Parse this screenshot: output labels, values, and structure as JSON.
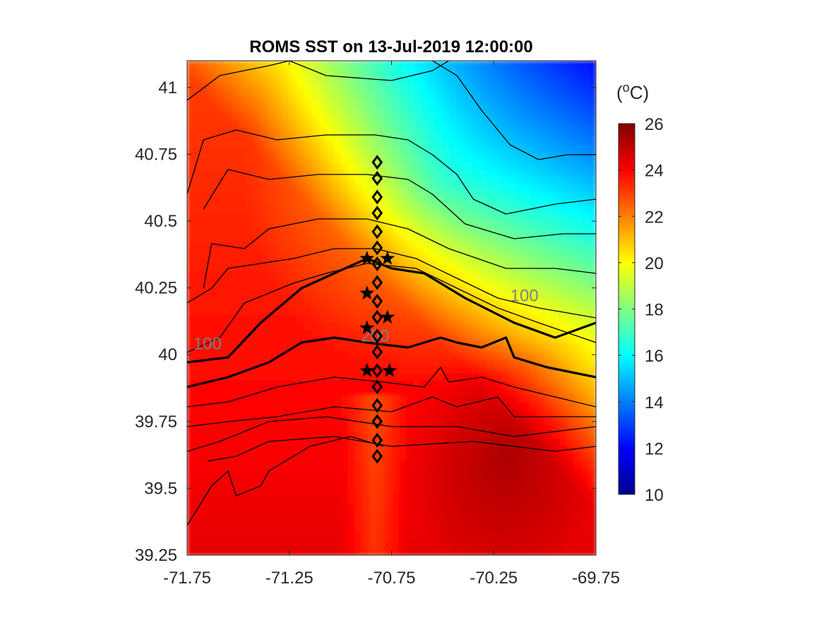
{
  "chart_data": {
    "type": "heatmap",
    "title": "ROMS SST on 13-Jul-2019 12:00:00",
    "xlabel": "",
    "ylabel": "",
    "xlim": [
      -71.75,
      -69.75
    ],
    "ylim": [
      39.25,
      41.1
    ],
    "x_ticks": [
      -71.75,
      -71.25,
      -70.75,
      -70.25,
      -69.75
    ],
    "x_tick_labels": [
      "-71.75",
      "-71.25",
      "-70.75",
      "-70.25",
      "-69.75"
    ],
    "y_ticks": [
      39.25,
      39.5,
      39.75,
      40,
      40.25,
      40.5,
      40.75,
      41
    ],
    "y_tick_labels": [
      "39.25",
      "39.5",
      "39.75",
      "40",
      "40.25",
      "40.5",
      "40.75",
      "41"
    ],
    "colorbar": {
      "unit_label": "(oC)",
      "unit_base": "(",
      "unit_sup": "o",
      "unit_rest": "C)",
      "range": [
        10,
        26
      ],
      "ticks": [
        10,
        12,
        14,
        16,
        18,
        20,
        22,
        24,
        26
      ],
      "tick_labels": [
        "10",
        "12",
        "14",
        "16",
        "18",
        "20",
        "22",
        "24",
        "26"
      ],
      "colormap": "jet"
    },
    "contour_labels": [
      {
        "text": "100",
        "lon": -71.65,
        "lat": 40.02
      },
      {
        "text": "200",
        "lon": -70.83,
        "lat": 40.05
      },
      {
        "text": "100",
        "lon": -70.1,
        "lat": 40.2
      }
    ],
    "station_diamonds": {
      "lon": -70.82,
      "lats": [
        40.72,
        40.66,
        40.59,
        40.53,
        40.46,
        40.4,
        40.34,
        40.27,
        40.2,
        40.14,
        40.07,
        40.01,
        39.94,
        39.88,
        39.81,
        39.75,
        39.68,
        39.62
      ]
    },
    "station_stars": [
      {
        "lon": -70.87,
        "lat": 40.36
      },
      {
        "lon": -70.77,
        "lat": 40.36
      },
      {
        "lon": -70.87,
        "lat": 40.23
      },
      {
        "lon": -70.77,
        "lat": 40.14
      },
      {
        "lon": -70.87,
        "lat": 40.1
      },
      {
        "lon": -70.87,
        "lat": 39.94
      },
      {
        "lon": -70.76,
        "lat": 39.94
      }
    ]
  }
}
